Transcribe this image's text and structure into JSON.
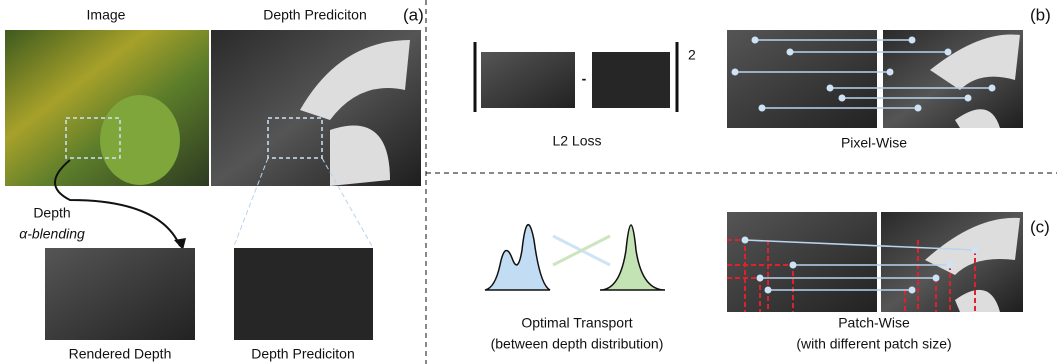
{
  "panel_a": {
    "label": "(a)",
    "image_title": "Image",
    "depth_title": "Depth Prediciton",
    "blend_label_1": "Depth",
    "blend_label_2": "α-blending",
    "rendered_caption": "Rendered Depth",
    "crop_caption": "Depth Prediciton"
  },
  "panel_b": {
    "label": "(b)",
    "minus": "-",
    "exponent": "2",
    "l2_caption": "L2 Loss",
    "pixel_caption": "Pixel-Wise"
  },
  "panel_c": {
    "label": "(c)",
    "ot_caption_1": "Optimal Transport",
    "ot_caption_2": "(between depth distribution)",
    "patch_caption_1": "Patch-Wise",
    "patch_caption_2": "(with different patch size)"
  }
}
